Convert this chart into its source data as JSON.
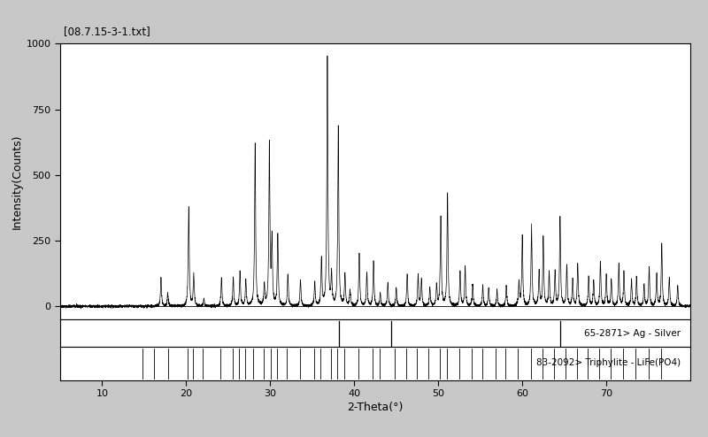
{
  "title": "[08.7.15-3-1.txt]",
  "xlabel": "2-Theta(°",
  "ylabel": "Intensity(Counts)",
  "xlim": [
    5,
    80
  ],
  "ylim": [
    -50,
    1000
  ],
  "yticks": [
    0,
    250,
    500,
    750,
    1000
  ],
  "xticks": [
    10,
    20,
    30,
    40,
    50,
    60,
    70
  ],
  "bg_color": "#c8c8c8",
  "plot_bg": "#ffffff",
  "label_ag": "65-2871> Ag - Silver",
  "label_life": "83-2092> Triphylite - LiFe(PO4)",
  "ag_peaks": [
    38.2,
    44.4,
    64.5
  ],
  "life_peaks": [
    14.8,
    16.2,
    17.8,
    20.2,
    20.8,
    22.0,
    24.1,
    25.5,
    26.3,
    27.0,
    28.0,
    29.2,
    30.1,
    30.8,
    32.0,
    33.5,
    35.2,
    36.0,
    37.2,
    38.0,
    38.8,
    40.5,
    42.2,
    43.0,
    44.8,
    46.2,
    47.5,
    48.8,
    50.2,
    51.0,
    52.5,
    54.0,
    55.2,
    56.8,
    58.0,
    59.5,
    61.0,
    62.4,
    63.8,
    65.2,
    66.5,
    67.8,
    69.2,
    70.5,
    72.0,
    73.5,
    75.0,
    76.5
  ],
  "xrd_peaks": [
    [
      17.0,
      110
    ],
    [
      17.8,
      50
    ],
    [
      20.3,
      380
    ],
    [
      20.9,
      120
    ],
    [
      22.1,
      30
    ],
    [
      24.2,
      110
    ],
    [
      25.6,
      110
    ],
    [
      26.4,
      130
    ],
    [
      27.1,
      100
    ],
    [
      28.2,
      620
    ],
    [
      29.3,
      80
    ],
    [
      29.9,
      620
    ],
    [
      30.2,
      250
    ],
    [
      30.9,
      270
    ],
    [
      32.1,
      120
    ],
    [
      33.6,
      100
    ],
    [
      35.3,
      90
    ],
    [
      36.1,
      180
    ],
    [
      36.8,
      950
    ],
    [
      37.3,
      120
    ],
    [
      38.1,
      680
    ],
    [
      38.9,
      120
    ],
    [
      39.5,
      60
    ],
    [
      40.6,
      200
    ],
    [
      41.5,
      130
    ],
    [
      42.3,
      170
    ],
    [
      43.1,
      50
    ],
    [
      44.0,
      90
    ],
    [
      45.0,
      70
    ],
    [
      46.3,
      120
    ],
    [
      47.6,
      120
    ],
    [
      48.0,
      100
    ],
    [
      49.0,
      70
    ],
    [
      49.8,
      80
    ],
    [
      50.3,
      340
    ],
    [
      51.1,
      430
    ],
    [
      52.6,
      130
    ],
    [
      53.2,
      150
    ],
    [
      54.1,
      80
    ],
    [
      55.3,
      80
    ],
    [
      56.0,
      70
    ],
    [
      57.0,
      60
    ],
    [
      58.1,
      80
    ],
    [
      59.6,
      90
    ],
    [
      60.0,
      270
    ],
    [
      61.1,
      310
    ],
    [
      62.0,
      130
    ],
    [
      62.5,
      260
    ],
    [
      63.2,
      130
    ],
    [
      63.9,
      130
    ],
    [
      64.5,
      340
    ],
    [
      65.3,
      160
    ],
    [
      66.0,
      100
    ],
    [
      66.6,
      160
    ],
    [
      67.9,
      110
    ],
    [
      68.5,
      100
    ],
    [
      69.3,
      170
    ],
    [
      70.0,
      120
    ],
    [
      70.6,
      100
    ],
    [
      71.5,
      160
    ],
    [
      72.1,
      130
    ],
    [
      73.0,
      100
    ],
    [
      73.6,
      110
    ],
    [
      74.5,
      80
    ],
    [
      75.1,
      150
    ],
    [
      76.0,
      120
    ],
    [
      76.6,
      240
    ],
    [
      77.5,
      110
    ],
    [
      78.5,
      80
    ]
  ]
}
